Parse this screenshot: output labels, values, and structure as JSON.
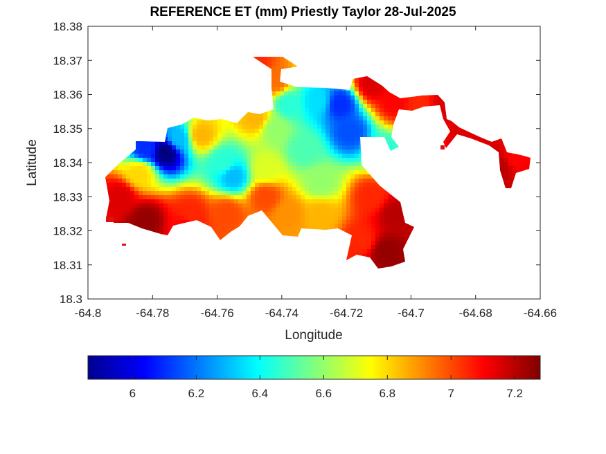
{
  "title": "REFERENCE ET (mm) Priestly Taylor 28-Jul-2025",
  "chart_data": {
    "type": "heatmap",
    "title": "REFERENCE ET (mm) Priestly Taylor 28-Jul-2025",
    "xlabel": "Longitude",
    "ylabel": "Latitude",
    "xlim": [
      -64.8,
      -64.66
    ],
    "ylim": [
      18.3,
      18.38
    ],
    "xticks": [
      "-64.8",
      "-64.78",
      "-64.76",
      "-64.74",
      "-64.72",
      "-64.7",
      "-64.68",
      "-64.66"
    ],
    "yticks": [
      "18.3",
      "18.31",
      "18.32",
      "18.33",
      "18.34",
      "18.35",
      "18.36",
      "18.37",
      "18.38"
    ],
    "colorbar": {
      "colormap": "jet",
      "range": [
        5.86,
        7.28
      ],
      "ticks": [
        "6",
        "6.2",
        "6.4",
        "6.6",
        "6.8",
        "7",
        "7.2"
      ]
    },
    "field_points": [
      {
        "lon": -64.776,
        "lat": 18.343,
        "value": 5.86
      },
      {
        "lon": -64.782,
        "lat": 18.344,
        "value": 6.1
      },
      {
        "lon": -64.772,
        "lat": 18.347,
        "value": 6.3
      },
      {
        "lon": -64.755,
        "lat": 18.336,
        "value": 6.3
      },
      {
        "lon": -64.758,
        "lat": 18.34,
        "value": 6.45
      },
      {
        "lon": -64.722,
        "lat": 18.357,
        "value": 6.1
      },
      {
        "lon": -64.719,
        "lat": 18.349,
        "value": 6.15
      },
      {
        "lon": -64.729,
        "lat": 18.358,
        "value": 6.35
      },
      {
        "lon": -64.738,
        "lat": 18.357,
        "value": 6.45
      },
      {
        "lon": -64.742,
        "lat": 18.35,
        "value": 6.6
      },
      {
        "lon": -64.733,
        "lat": 18.344,
        "value": 6.5
      },
      {
        "lon": -64.728,
        "lat": 18.334,
        "value": 6.6
      },
      {
        "lon": -64.708,
        "lat": 18.343,
        "value": 6.45
      },
      {
        "lon": -64.745,
        "lat": 18.338,
        "value": 6.7
      },
      {
        "lon": -64.748,
        "lat": 18.353,
        "value": 6.85
      },
      {
        "lon": -64.765,
        "lat": 18.348,
        "value": 6.85
      },
      {
        "lon": -64.784,
        "lat": 18.337,
        "value": 6.8
      },
      {
        "lon": -64.738,
        "lat": 18.325,
        "value": 6.9
      },
      {
        "lon": -64.745,
        "lat": 18.33,
        "value": 7.0
      },
      {
        "lon": -64.728,
        "lat": 18.325,
        "value": 6.85
      },
      {
        "lon": -64.757,
        "lat": 18.325,
        "value": 7.0
      },
      {
        "lon": -64.768,
        "lat": 18.325,
        "value": 7.05
      },
      {
        "lon": -64.79,
        "lat": 18.33,
        "value": 7.15
      },
      {
        "lon": -64.782,
        "lat": 18.323,
        "value": 7.25
      },
      {
        "lon": -64.77,
        "lat": 18.321,
        "value": 7.1
      },
      {
        "lon": -64.712,
        "lat": 18.33,
        "value": 7.05
      },
      {
        "lon": -64.705,
        "lat": 18.325,
        "value": 7.2
      },
      {
        "lon": -64.708,
        "lat": 18.314,
        "value": 7.25
      },
      {
        "lon": -64.715,
        "lat": 18.317,
        "value": 7.05
      },
      {
        "lon": -64.712,
        "lat": 18.363,
        "value": 7.15
      },
      {
        "lon": -64.705,
        "lat": 18.358,
        "value": 7.1
      },
      {
        "lon": -64.697,
        "lat": 18.357,
        "value": 7.05
      },
      {
        "lon": -64.69,
        "lat": 18.357,
        "value": 7.15
      },
      {
        "lon": -64.682,
        "lat": 18.349,
        "value": 7.15
      },
      {
        "lon": -64.672,
        "lat": 18.339,
        "value": 7.2
      },
      {
        "lon": -64.668,
        "lat": 18.341,
        "value": 7.1
      },
      {
        "lon": -64.748,
        "lat": 18.368,
        "value": 7.05
      },
      {
        "lon": -64.742,
        "lat": 18.364,
        "value": 6.95
      }
    ]
  }
}
